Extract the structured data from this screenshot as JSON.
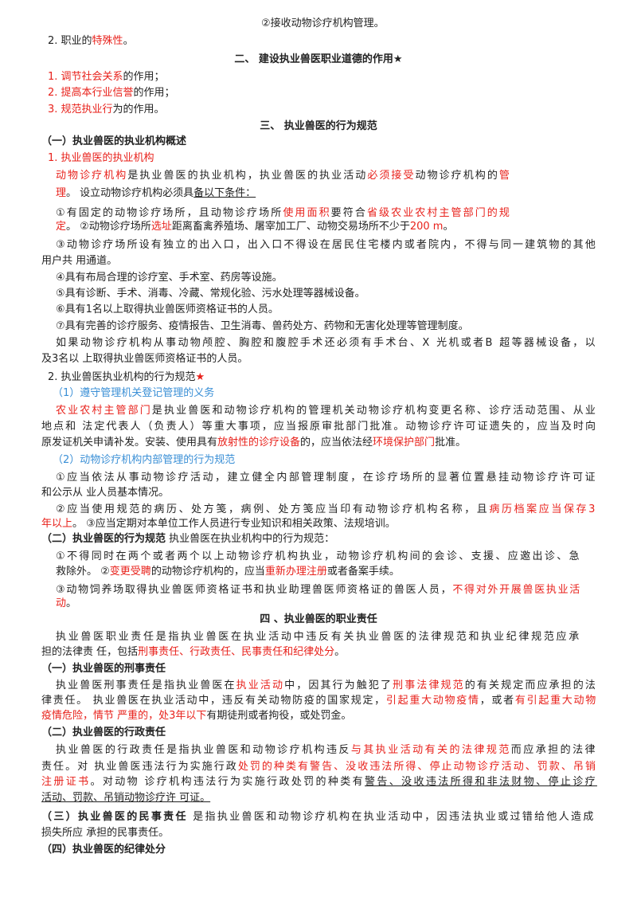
{
  "lines": [
    {
      "runs": [
        "②接收动物诊疗机构管理。"
      ]
    },
    {
      "runs": [
        "2. 职业的",
        {
          "text": "特殊性",
          "color": "red"
        },
        "。"
      ]
    },
    {
      "align": "center",
      "runs": [
        "二、 建设执业兽医职业道德的作用★"
      ]
    },
    {
      "runs": [
        {
          "text": "1. 调节社会关系",
          "color": "red"
        },
        "的作用；"
      ]
    },
    {
      "runs": [
        {
          "text": "2. 提高本行业信誉",
          "color": "red"
        },
        "的作用；"
      ]
    },
    {
      "runs": [
        {
          "text": "3. 规范执业行",
          "color": "red"
        },
        "为的作用。"
      ]
    },
    {
      "align": "center",
      "runs": [
        "三、 执业兽医的行为规范"
      ]
    },
    {
      "runs": [
        {
          "text": "（一）执业兽医的执业机构概述",
          "bold": true
        }
      ]
    },
    {
      "runs": [
        {
          "text": "1. 执业兽医的执业机构",
          "color": "red"
        }
      ]
    },
    {
      "runs": [
        {
          "text": "动物诊疗机构",
          "color": "red"
        },
        "是执业兽医的执业机构，执业兽医的执业活动",
        {
          "text": "必须接受",
          "color": "red"
        },
        "动物诊疗机构的",
        {
          "text": "管",
          "color": "red"
        }
      ]
    },
    {
      "runs": [
        {
          "text": "理",
          "color": "red"
        },
        "。 设立动物诊疗机构必须具",
        {
          "text": "备以下条件：",
          "underline": true
        }
      ]
    },
    {
      "runs": [
        "①有固定的动物诊疗场所，且动物诊疗场所",
        {
          "text": "使用面积",
          "color": "red"
        },
        "要符合",
        {
          "text": "省级农业农村主管部门的规",
          "color": "red"
        }
      ]
    },
    {
      "runs": [
        {
          "text": "定",
          "color": "red"
        },
        "。 ②动物诊疗场所",
        {
          "text": "选址",
          "color": "red"
        },
        "距离畜禽养殖场、屠宰加工厂、动物交易场所不少于",
        {
          "text": "200 m",
          "color": "red"
        },
        "。"
      ]
    },
    {
      "runs": [
        "③动物诊疗场所设有独立的出入口，出入口不得设在居民住宅楼内或者院内，不得与同一建筑物的其他"
      ]
    },
    {
      "runs": [
        "用户共 用通道。"
      ]
    },
    {
      "runs": [
        "④具有布局合理的诊疗室、手术室、药房等设施。"
      ]
    },
    {
      "runs": [
        "⑤具有诊断、手术、消毒、冷藏、常规化验、污水处理等器械设备。"
      ]
    },
    {
      "runs": [
        "⑥具有1名以上取得执业兽医师资格证书的人员。"
      ]
    },
    {
      "runs": [
        "⑦具有完善的诊疗服务、疫情报告、卫生消毒、兽药处方、药物和无害化处理等管理制度。"
      ]
    },
    {
      "runs": [
        "如果动物诊疗机构从事动物颅腔、胸腔和腹腔手术还必须有手术台、X 光机或者B 超等器械设备，以"
      ]
    },
    {
      "runs": [
        "及3名以 上取得执业兽医师资格证书的人员。"
      ]
    },
    {
      "runs": [
        "2. 执业兽医执业机构的行为规范",
        {
          "text": "★",
          "color": "red"
        }
      ]
    },
    {
      "runs": [
        {
          "text": "（1）遵守管理机关登记管理的义务",
          "color": "blue"
        }
      ]
    },
    {
      "runs": [
        {
          "text": "农业农村主管部门",
          "color": "red"
        },
        "是执业兽医和动物诊疗机构的管理机关动物诊疗机构变更名称、诊疗活动范围、从业"
      ]
    },
    {
      "runs": [
        "地点和 法定代表人（负责人）等重大事项，应当报原审批部门批准。动物诊疗许可证遗失的，应当及时向"
      ]
    },
    {
      "runs": [
        "原发证机关申请补发。安装、使用具有",
        {
          "text": "放射性的诊疗设备",
          "color": "red"
        },
        "的，应当依法经",
        {
          "text": "环境保护部门",
          "color": "red"
        },
        "批准。"
      ]
    },
    {
      "runs": [
        {
          "text": "（2）动物诊疗机构内部管理的行为规范",
          "color": "blue"
        }
      ]
    },
    {
      "runs": [
        "①应当依法从事动物诊疗活动，建立健全内部管理制度，在诊疗场所的显著位置悬挂动物诊疗许可证"
      ]
    },
    {
      "runs": [
        "和公示从 业人员基本情况。"
      ]
    },
    {
      "runs": [
        "②应当使用规范的病历、处方笺，病例、处方笺应当印有动物诊疗机构名称，且",
        {
          "text": "病历档案应当保存3",
          "color": "red"
        }
      ]
    },
    {
      "runs": [
        {
          "text": "年以上",
          "color": "red"
        },
        "。 ③应当定期对本单位工作人员进行专业知识和相关政策、法规培训。"
      ]
    },
    {
      "runs": [
        {
          "text": "（二）执业兽医的行为规范",
          "bold": true
        },
        "  执业兽医在执业机构中的行为规范："
      ]
    },
    {
      "runs": [
        "①不得同时在两个或者两个以上动物诊疗机构执业，动物诊疗机构间的会诊、支援、应邀出诊、急"
      ]
    },
    {
      "runs": [
        "救除外。 ②",
        {
          "text": "变更受聘",
          "color": "red"
        },
        "的动物诊疗机构的，应当",
        {
          "text": "重新办理注册",
          "color": "red"
        },
        "或者备案手续。"
      ]
    },
    {
      "runs": [
        "③动物饲养场取得执业兽医师资格证书和执业助理兽医师资格证的兽医人员，",
        {
          "text": "不得对外开展兽医执业活",
          "color": "red"
        }
      ]
    },
    {
      "runs": [
        {
          "text": "动",
          "color": "red"
        },
        "。"
      ]
    },
    {
      "align": "center",
      "runs": [
        "四 、执业兽医的职业责任"
      ]
    },
    {
      "runs": [
        "执业兽医职业责任是指执业兽医在执业活动中违反有关执业兽医的法律规范和执业纪律规范应承"
      ]
    },
    {
      "runs": [
        "担的法律责 任，包括",
        {
          "text": "刑事责任、行政责任、民事责任和纪律处分",
          "color": "red"
        },
        "。"
      ]
    },
    {
      "runs": [
        {
          "text": "（一）执业兽医的刑事责任",
          "bold": true
        }
      ]
    },
    {
      "runs": [
        "执业兽医刑事责任是指执业兽医在",
        {
          "text": "执业活动",
          "color": "red"
        },
        "中，因其行为触犯了",
        {
          "text": "刑事法律规范",
          "color": "red"
        },
        "的有关规定而应承担的法"
      ]
    },
    {
      "runs": [
        "律责任。 执业兽医在执业活动中，违反有关动物防疫的国家规定，",
        {
          "text": "引起重大动物疫情",
          "color": "red"
        },
        "，或者",
        {
          "text": "有引起重大动物",
          "color": "red"
        }
      ]
    },
    {
      "runs": [
        {
          "text": "疫情危险，情节  严重的，处3年以下",
          "color": "red"
        },
        "有期徒刑或者拘役，或处罚金。"
      ]
    },
    {
      "runs": [
        {
          "text": "（二）执业兽医的行政责任",
          "bold": true
        }
      ]
    },
    {
      "runs": [
        "执业兽医的行政责任是指执业兽医和动物诊疗机构违反",
        {
          "text": "与其执业活动有关的法律规范",
          "color": "red"
        },
        "而应承担的法律"
      ]
    },
    {
      "runs": [
        "责任。对 执业兽医违法行为实施行政",
        {
          "text": "处罚的种类有警告、没收违法所得、停止动物诊疗活动、罚款、吊销",
          "color": "red"
        }
      ]
    },
    {
      "runs": [
        {
          "text": "注册证书",
          "color": "red"
        },
        "。对动物 诊疗机构违法行为实施行政处罚的种类有",
        {
          "text": "警告、没收违法所得和非法财物、停止诊疗",
          "underline": true
        }
      ]
    },
    {
      "runs": [
        {
          "text": "活动、罚款、吊销动物诊疗许 可证。",
          "underline": true
        }
      ]
    },
    {
      "runs": [
        {
          "text": "（三）执业兽医的民事责任",
          "bold": true
        },
        "  是指执业兽医和动物诊疗机构在执业活动中，因违法执业或过错给他人造成"
      ]
    },
    {
      "runs": [
        "损失所应 承担的民事责任。"
      ]
    },
    {
      "runs": [
        {
          "text": "（四）执业兽医的纪律处分",
          "bold": true
        }
      ]
    }
  ]
}
